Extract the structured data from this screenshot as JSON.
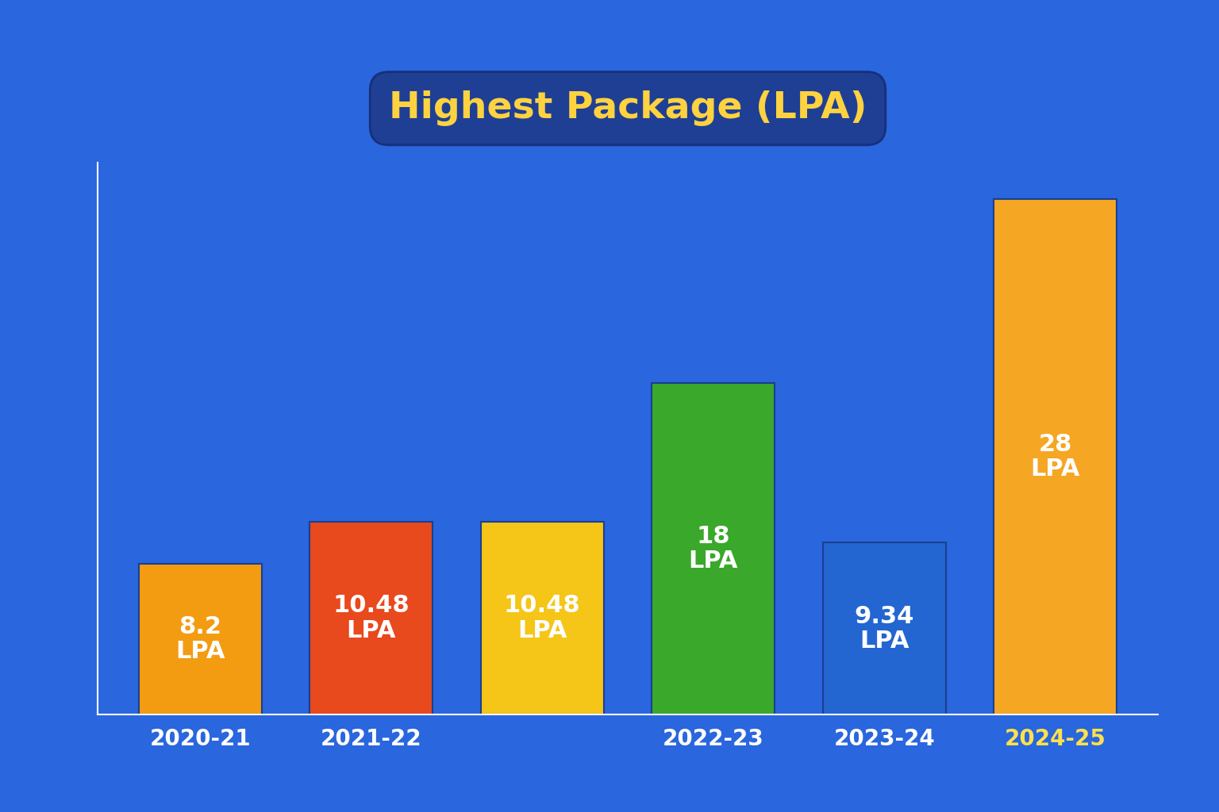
{
  "chart_data": {
    "type": "bar",
    "title": "Highest Package (LPA)",
    "categories": [
      "2020-21",
      "2021-22",
      null,
      "2022-23",
      "2023-24",
      "2024-25"
    ],
    "values": [
      8.2,
      10.48,
      10.48,
      18,
      9.34,
      28
    ],
    "value_labels": [
      "8.2 LPA",
      "10.48 LPA",
      "10.48 LPA",
      "18 LPA",
      "9.34 LPA",
      "28 LPA"
    ],
    "colors": [
      "#f39c12",
      "#e8491d",
      "#f5c518",
      "#3aa82a",
      "#2366d1",
      "#f5a623"
    ],
    "ylim": [
      0,
      30
    ],
    "data_labels": true,
    "tick_labels": "x",
    "grid": false
  }
}
